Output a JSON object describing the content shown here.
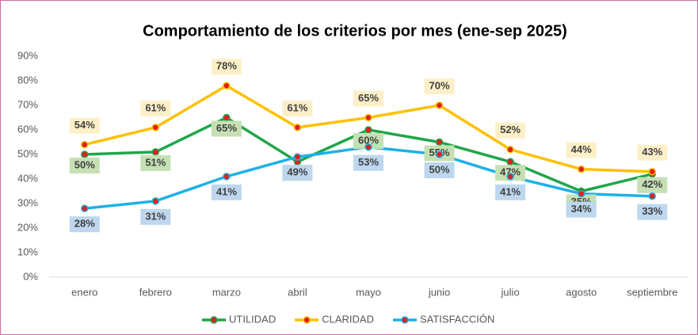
{
  "chart_data": {
    "type": "line",
    "title": "Comportamiento de los criterios por mes (ene-sep 2025)",
    "categories": [
      "enero",
      "febrero",
      "marzo",
      "abril",
      "mayo",
      "junio",
      "julio",
      "agosto",
      "septiembre"
    ],
    "series": [
      {
        "name": "UTILIDAD",
        "color": "#1fa64a",
        "values": [
          50,
          51,
          65,
          47,
          60,
          55,
          47,
          35,
          42
        ],
        "value_labels": [
          "50%",
          "51%",
          "65%",
          "47%",
          "60%",
          "55%",
          "47%",
          "35%",
          "42%"
        ]
      },
      {
        "name": "CLARIDAD",
        "color": "#ffc000",
        "values": [
          54,
          61,
          78,
          61,
          65,
          70,
          52,
          44,
          43
        ],
        "value_labels": [
          "54%",
          "61%",
          "78%",
          "61%",
          "65%",
          "70%",
          "52%",
          "44%",
          "43%"
        ]
      },
      {
        "name": "SATISFACCIÓN",
        "color": "#1fb0e8",
        "values": [
          28,
          31,
          41,
          49,
          53,
          50,
          41,
          34,
          33
        ],
        "value_labels": [
          "28%",
          "31%",
          "41%",
          "49%",
          "53%",
          "50%",
          "41%",
          "34%",
          "33%"
        ]
      }
    ],
    "marker_color": "#e02020",
    "ylim": [
      0,
      90
    ],
    "yticks": [
      {
        "value": 0,
        "label": "0%"
      },
      {
        "value": 10,
        "label": "10%"
      },
      {
        "value": 20,
        "label": "20%"
      },
      {
        "value": 30,
        "label": "30%"
      },
      {
        "value": 40,
        "label": "40%"
      },
      {
        "value": 50,
        "label": "50%"
      },
      {
        "value": 60,
        "label": "60%"
      },
      {
        "value": 70,
        "label": "70%"
      },
      {
        "value": 80,
        "label": "80%"
      },
      {
        "value": 90,
        "label": "90%"
      }
    ],
    "legend": "bottom"
  }
}
